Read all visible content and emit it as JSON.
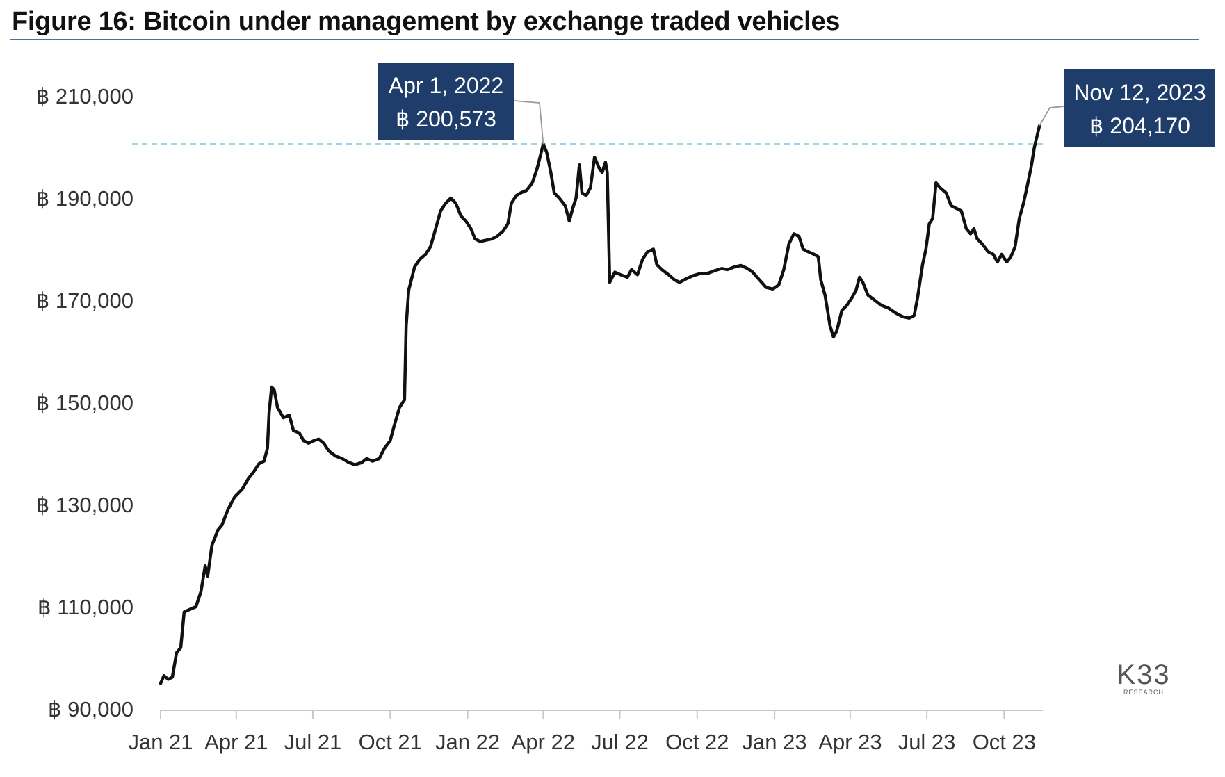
{
  "chart_data": {
    "type": "line",
    "title": "Figure 16: Bitcoin under management by exchange traded vehicles",
    "xlabel": "",
    "ylabel": "",
    "x_ticks": [
      "Jan 21",
      "Apr 21",
      "Jul 21",
      "Oct 21",
      "Jan 22",
      "Apr 22",
      "Jul 22",
      "Oct 22",
      "Jan 23",
      "Apr 23",
      "Jul 23",
      "Oct 23"
    ],
    "x_tick_dates": [
      "2021-01-01",
      "2021-04-01",
      "2021-07-01",
      "2021-10-01",
      "2022-01-01",
      "2022-04-01",
      "2022-07-01",
      "2022-10-01",
      "2023-01-01",
      "2023-04-01",
      "2023-07-01",
      "2023-10-01"
    ],
    "y_ticks": [
      "฿ 90,000",
      "฿ 110,000",
      "฿ 130,000",
      "฿ 150,000",
      "฿ 170,000",
      "฿ 190,000",
      "฿ 210,000"
    ],
    "ylim": [
      90000,
      210000
    ],
    "xlim": [
      "2021-01-01",
      "2023-11-16"
    ],
    "grid": false,
    "reference_line": {
      "y": 200573,
      "style": "dashed",
      "color": "#9fd3ea"
    },
    "annotations": [
      {
        "date": "2022-04-01",
        "line1": "Apr 1, 2022",
        "line2": "฿ 200,573"
      },
      {
        "date": "2023-11-12",
        "line1": "Nov 12, 2023",
        "line2": "฿ 204,170"
      }
    ],
    "series": [
      {
        "line_color": "#111111",
        "points": [
          [
            "2021-01-01",
            95000
          ],
          [
            "2021-01-05",
            96500
          ],
          [
            "2021-01-10",
            95800
          ],
          [
            "2021-01-15",
            96200
          ],
          [
            "2021-01-20",
            101000
          ],
          [
            "2021-01-25",
            102000
          ],
          [
            "2021-01-29",
            109000
          ],
          [
            "2021-02-05",
            109500
          ],
          [
            "2021-02-12",
            110000
          ],
          [
            "2021-02-18",
            113000
          ],
          [
            "2021-02-23",
            118000
          ],
          [
            "2021-02-26",
            116000
          ],
          [
            "2021-03-03",
            122000
          ],
          [
            "2021-03-10",
            125000
          ],
          [
            "2021-03-15",
            126000
          ],
          [
            "2021-03-22",
            129000
          ],
          [
            "2021-03-30",
            131500
          ],
          [
            "2021-04-08",
            133000
          ],
          [
            "2021-04-15",
            135000
          ],
          [
            "2021-04-22",
            136500
          ],
          [
            "2021-04-28",
            138000
          ],
          [
            "2021-05-04",
            138500
          ],
          [
            "2021-05-08",
            141000
          ],
          [
            "2021-05-10",
            148000
          ],
          [
            "2021-05-13",
            153000
          ],
          [
            "2021-05-16",
            152500
          ],
          [
            "2021-05-20",
            149000
          ],
          [
            "2021-05-27",
            147000
          ],
          [
            "2021-06-03",
            147500
          ],
          [
            "2021-06-08",
            144500
          ],
          [
            "2021-06-15",
            144000
          ],
          [
            "2021-06-20",
            142500
          ],
          [
            "2021-06-26",
            142000
          ],
          [
            "2021-07-02",
            142500
          ],
          [
            "2021-07-08",
            142800
          ],
          [
            "2021-07-14",
            142000
          ],
          [
            "2021-07-20",
            140500
          ],
          [
            "2021-07-28",
            139500
          ],
          [
            "2021-08-05",
            139000
          ],
          [
            "2021-08-12",
            138300
          ],
          [
            "2021-08-20",
            137800
          ],
          [
            "2021-08-28",
            138200
          ],
          [
            "2021-09-03",
            139000
          ],
          [
            "2021-09-10",
            138500
          ],
          [
            "2021-09-18",
            139000
          ],
          [
            "2021-09-24",
            141000
          ],
          [
            "2021-10-01",
            142500
          ],
          [
            "2021-10-05",
            145000
          ],
          [
            "2021-10-12",
            149000
          ],
          [
            "2021-10-18",
            150500
          ],
          [
            "2021-10-20",
            165000
          ],
          [
            "2021-10-23",
            172000
          ],
          [
            "2021-10-30",
            176500
          ],
          [
            "2021-11-05",
            178000
          ],
          [
            "2021-11-12",
            179000
          ],
          [
            "2021-11-18",
            180500
          ],
          [
            "2021-11-24",
            184000
          ],
          [
            "2021-11-30",
            187500
          ],
          [
            "2021-12-06",
            189000
          ],
          [
            "2021-12-12",
            190000
          ],
          [
            "2021-12-18",
            189000
          ],
          [
            "2021-12-24",
            186500
          ],
          [
            "2021-12-30",
            185500
          ],
          [
            "2022-01-05",
            184000
          ],
          [
            "2022-01-10",
            182000
          ],
          [
            "2022-01-16",
            181500
          ],
          [
            "2022-01-24",
            181800
          ],
          [
            "2022-01-30",
            182000
          ],
          [
            "2022-02-05",
            182500
          ],
          [
            "2022-02-12",
            183500
          ],
          [
            "2022-02-18",
            185000
          ],
          [
            "2022-02-22",
            189000
          ],
          [
            "2022-02-28",
            190500
          ],
          [
            "2022-03-05",
            191000
          ],
          [
            "2022-03-12",
            191500
          ],
          [
            "2022-03-19",
            193000
          ],
          [
            "2022-03-25",
            196000
          ],
          [
            "2022-04-01",
            200573
          ],
          [
            "2022-04-05",
            199000
          ],
          [
            "2022-04-10",
            195000
          ],
          [
            "2022-04-14",
            191000
          ],
          [
            "2022-04-20",
            190000
          ],
          [
            "2022-04-27",
            188500
          ],
          [
            "2022-05-02",
            185500
          ],
          [
            "2022-05-06",
            188000
          ],
          [
            "2022-05-10",
            190000
          ],
          [
            "2022-05-14",
            196500
          ],
          [
            "2022-05-17",
            191000
          ],
          [
            "2022-05-22",
            190500
          ],
          [
            "2022-05-27",
            192000
          ],
          [
            "2022-06-01",
            198000
          ],
          [
            "2022-06-06",
            196000
          ],
          [
            "2022-06-10",
            195000
          ],
          [
            "2022-06-14",
            197000
          ],
          [
            "2022-06-16",
            195000
          ],
          [
            "2022-06-19",
            173500
          ],
          [
            "2022-06-25",
            175500
          ],
          [
            "2022-07-02",
            175000
          ],
          [
            "2022-07-10",
            174500
          ],
          [
            "2022-07-15",
            176000
          ],
          [
            "2022-07-22",
            175000
          ],
          [
            "2022-07-28",
            178000
          ],
          [
            "2022-08-03",
            179500
          ],
          [
            "2022-08-10",
            180000
          ],
          [
            "2022-08-14",
            177000
          ],
          [
            "2022-08-20",
            176000
          ],
          [
            "2022-08-28",
            175000
          ],
          [
            "2022-09-04",
            174000
          ],
          [
            "2022-09-10",
            173500
          ],
          [
            "2022-09-18",
            174200
          ],
          [
            "2022-09-26",
            174800
          ],
          [
            "2022-10-04",
            175200
          ],
          [
            "2022-10-14",
            175300
          ],
          [
            "2022-10-22",
            175800
          ],
          [
            "2022-10-30",
            176200
          ],
          [
            "2022-11-06",
            176000
          ],
          [
            "2022-11-14",
            176500
          ],
          [
            "2022-11-22",
            176800
          ],
          [
            "2022-11-30",
            176200
          ],
          [
            "2022-12-06",
            175500
          ],
          [
            "2022-12-14",
            174000
          ],
          [
            "2022-12-22",
            172500
          ],
          [
            "2022-12-30",
            172200
          ],
          [
            "2023-01-06",
            173000
          ],
          [
            "2023-01-12",
            176000
          ],
          [
            "2023-01-18",
            181000
          ],
          [
            "2023-01-24",
            183000
          ],
          [
            "2023-01-30",
            182500
          ],
          [
            "2023-02-04",
            180000
          ],
          [
            "2023-02-10",
            179500
          ],
          [
            "2023-02-17",
            179000
          ],
          [
            "2023-02-22",
            178500
          ],
          [
            "2023-02-25",
            174000
          ],
          [
            "2023-03-02",
            171000
          ],
          [
            "2023-03-08",
            165000
          ],
          [
            "2023-03-12",
            162800
          ],
          [
            "2023-03-16",
            164000
          ],
          [
            "2023-03-22",
            168000
          ],
          [
            "2023-03-28",
            169000
          ],
          [
            "2023-04-03",
            170500
          ],
          [
            "2023-04-08",
            172000
          ],
          [
            "2023-04-12",
            174500
          ],
          [
            "2023-04-16",
            173500
          ],
          [
            "2023-04-22",
            171000
          ],
          [
            "2023-04-30",
            170000
          ],
          [
            "2023-05-08",
            169000
          ],
          [
            "2023-05-16",
            168500
          ],
          [
            "2023-05-25",
            167500
          ],
          [
            "2023-06-02",
            166800
          ],
          [
            "2023-06-10",
            166500
          ],
          [
            "2023-06-16",
            167000
          ],
          [
            "2023-06-20",
            170500
          ],
          [
            "2023-06-26",
            177000
          ],
          [
            "2023-06-30",
            180000
          ],
          [
            "2023-07-04",
            185000
          ],
          [
            "2023-07-08",
            186000
          ],
          [
            "2023-07-12",
            193000
          ],
          [
            "2023-07-17",
            192000
          ],
          [
            "2023-07-24",
            191000
          ],
          [
            "2023-07-30",
            188500
          ],
          [
            "2023-08-05",
            188000
          ],
          [
            "2023-08-11",
            187500
          ],
          [
            "2023-08-17",
            184000
          ],
          [
            "2023-08-22",
            183000
          ],
          [
            "2023-08-26",
            184000
          ],
          [
            "2023-08-30",
            182000
          ],
          [
            "2023-09-05",
            181000
          ],
          [
            "2023-09-12",
            179500
          ],
          [
            "2023-09-18",
            179000
          ],
          [
            "2023-09-23",
            177500
          ],
          [
            "2023-09-28",
            179000
          ],
          [
            "2023-10-04",
            177500
          ],
          [
            "2023-10-09",
            178500
          ],
          [
            "2023-10-14",
            180500
          ],
          [
            "2023-10-19",
            186000
          ],
          [
            "2023-10-24",
            189000
          ],
          [
            "2023-10-28",
            192000
          ],
          [
            "2023-11-02",
            196000
          ],
          [
            "2023-11-06",
            200000
          ],
          [
            "2023-11-12",
            204170
          ]
        ]
      }
    ]
  },
  "logo": {
    "mark": "K33",
    "sub": "RESEARCH"
  }
}
